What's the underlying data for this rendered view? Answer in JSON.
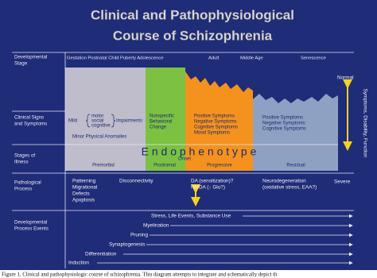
{
  "title": [
    "Clinical and Pathophysiological",
    "Course of Schizophrenia"
  ],
  "row_labels": {
    "developmental_stage": [
      "Developmental",
      "Stage"
    ],
    "clinical_signs": [
      "Clinical Signs",
      "and Symptoms"
    ],
    "stages_of_illness": [
      "Stages of",
      "Illness"
    ],
    "pathological_process": [
      "Pathological",
      "Process"
    ],
    "developmental_events": [
      "Developmental",
      "Process Events"
    ]
  },
  "life_stages": [
    "Gestation Postnatal Child Puberty Adolescence",
    "Adult",
    "Middle Age",
    "Senescence"
  ],
  "scale": {
    "top": "Normal",
    "bottom": "Severe",
    "axis": "Symptoms, Disability, Function"
  },
  "clinical": {
    "mild": "Mild",
    "domains": [
      "motor",
      "social",
      "cognitive"
    ],
    "impairments": "Impairments",
    "anomalies": "Minor Physical Anomalies",
    "prodromal": [
      "Nonspecific",
      "Behavioral",
      "Change"
    ],
    "progressive": [
      "Positive Symptoms",
      "Negative Symptoms",
      "Cognitive Symptoms",
      "Mood Symptoms"
    ],
    "residual": [
      "Positive Symptoms",
      "Negative Symptoms",
      "Cognitive Symptoms"
    ]
  },
  "endophenotype": "E n d o p h e n o t y p e",
  "stages": {
    "premorbid": "Premorbid",
    "prodromal": "Prodromal",
    "onset": "Onset",
    "progressive": "Progressive",
    "residual": "Residual"
  },
  "pathology": {
    "early": [
      "Patterning",
      "Migrational",
      "Defects",
      "Apoptosis"
    ],
    "disconnectivity": "Disconnectivity",
    "da": [
      "DA (sensitization)?",
      "NMDA (↓ Glu?)"
    ],
    "neurodegeneration": [
      "Neurodegeneration",
      "(oxidative stress, EAA?)"
    ]
  },
  "events": {
    "stress": "Stress, Life Events, Substance Use",
    "steps": [
      "Myelination",
      "Pruning",
      "Synaptogenesis",
      "Differentiation",
      "Induction"
    ]
  },
  "caption": "Figure 1. Clinical and pathophysiologic course of schizophrenia. This diagram attempts to integrate and schematically depict th"
}
